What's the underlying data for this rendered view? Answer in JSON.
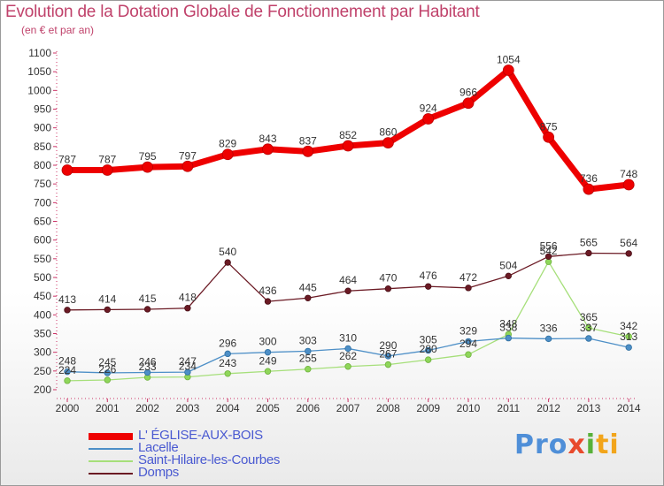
{
  "title": "Evolution de la Dotation Globale de Fonctionnement par Habitant",
  "subtitle": "(en € et par an)",
  "logo": {
    "p1": "Pro",
    "p2": "x",
    "p3": "i",
    "p4": "ti"
  },
  "colors": {
    "l_eglise": "#ee0000",
    "lacelle": "#4d8fc7",
    "saint_hilaire": "#a6df7a",
    "domps": "#6b1a24"
  },
  "chart_data": {
    "type": "line",
    "title": "Evolution de la Dotation Globale de Fonctionnement par Habitant",
    "subtitle": "(en € et par an)",
    "xlabel": "",
    "ylabel": "",
    "x": [
      "2000",
      "2001",
      "2002",
      "2003",
      "2004",
      "2005",
      "2006",
      "2007",
      "2008",
      "2009",
      "2010",
      "2011",
      "2012",
      "2013",
      "2014"
    ],
    "ylim": [
      200,
      1100
    ],
    "yticks": [
      200,
      250,
      300,
      350,
      400,
      450,
      500,
      550,
      600,
      650,
      700,
      750,
      800,
      850,
      900,
      950,
      1000,
      1050,
      1100
    ],
    "ytick_labels": [
      "200",
      "250",
      "300",
      "350",
      "400",
      "450",
      "500",
      "550",
      "600",
      "650",
      "700",
      "750",
      "800",
      "850",
      "900",
      "950",
      "1000",
      "1050",
      "1100"
    ],
    "grid": false,
    "legend_position": "bottom-left",
    "series": [
      {
        "name": "L' ÉGLISE-AUX-BOIS",
        "key": "l_eglise",
        "values": [
          787,
          787,
          795,
          797,
          829,
          843,
          837,
          852,
          860,
          924,
          966,
          1054,
          875,
          736,
          748
        ],
        "labels": [
          "787",
          "787",
          "795",
          "797",
          "829",
          "843",
          "837",
          "852",
          "860",
          "924",
          "966",
          "1054",
          "875",
          "736",
          "748"
        ]
      },
      {
        "name": "Lacelle",
        "key": "lacelle",
        "values": [
          248,
          245,
          246,
          247,
          296,
          300,
          303,
          310,
          290,
          305,
          329,
          338,
          336,
          337,
          313
        ],
        "labels": [
          "248",
          "245",
          "246",
          "247",
          "296",
          "300",
          "303",
          "310",
          "290",
          "305",
          "329",
          "338",
          "336",
          "337",
          "313"
        ]
      },
      {
        "name": "Saint-Hilaire-les-Courbes",
        "key": "saint_hilaire",
        "values": [
          224,
          226,
          233,
          234,
          243,
          249,
          255,
          262,
          267,
          280,
          294,
          348,
          542,
          365,
          342
        ],
        "labels": [
          "224",
          "226",
          "233",
          "234",
          "243",
          "249",
          "255",
          "262",
          "267",
          "280",
          "294",
          "348",
          "542",
          "365",
          "342"
        ]
      },
      {
        "name": "Domps",
        "key": "domps",
        "values": [
          413,
          414,
          415,
          418,
          540,
          436,
          445,
          464,
          470,
          476,
          472,
          504,
          556,
          565,
          564
        ],
        "labels": [
          "413",
          "414",
          "415",
          "418",
          "540",
          "436",
          "445",
          "464",
          "470",
          "476",
          "472",
          "504",
          "556",
          "565",
          "564"
        ]
      }
    ]
  }
}
